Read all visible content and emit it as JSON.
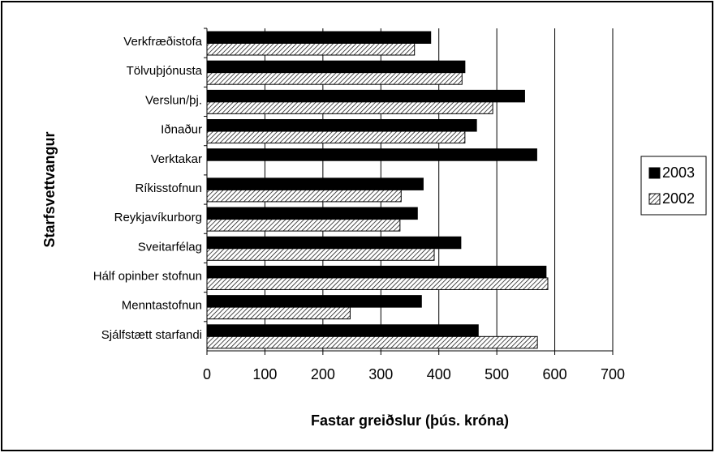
{
  "chart_data": {
    "type": "hbar",
    "xlabel": "Fastar greiðslur (þús. króna)",
    "ylabel": "Starfsvettvangur",
    "categories": [
      "Verkfræðistofa",
      "Tölvuþjónusta",
      "Verslun/þj.",
      "Iðnaður",
      "Verktakar",
      "Ríkisstofnun",
      "Reykjavíkurborg",
      "Sveitarfélag",
      "Hálf opinber stofnun",
      "Menntastofnun",
      "Sjálfstætt starfandi"
    ],
    "series": [
      {
        "name": "2003",
        "color": "#000000",
        "hatch": false,
        "values": [
          386,
          445,
          548,
          465,
          569,
          373,
          363,
          438,
          585,
          370,
          468
        ]
      },
      {
        "name": "2002",
        "color": "#000000",
        "hatch": true,
        "values": [
          358,
          440,
          493,
          445,
          null,
          335,
          333,
          392,
          588,
          247,
          570
        ]
      }
    ],
    "xlim": [
      0,
      700
    ],
    "xticks": [
      0,
      100,
      200,
      300,
      400,
      500,
      600,
      700
    ],
    "grid": true,
    "legend": "right"
  }
}
